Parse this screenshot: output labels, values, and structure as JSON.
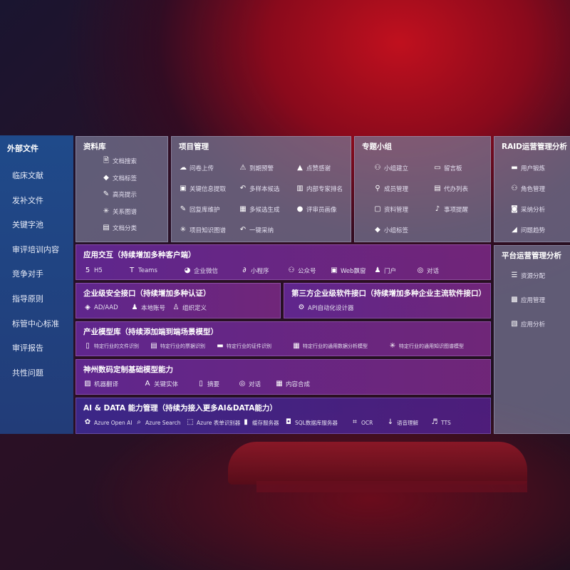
{
  "sidebar": {
    "title": "外部文件",
    "items": [
      "临床文献",
      "发补文件",
      "关键字池",
      "审评培训内容",
      "竞争对手",
      "指导原则",
      "标管中心标准",
      "审评报告",
      "共性问题"
    ]
  },
  "library": {
    "title": "资料库",
    "items": [
      {
        "label": "文档搜索",
        "icon": "document-search-icon"
      },
      {
        "label": "文档标签",
        "icon": "tag-icon"
      },
      {
        "label": "高亮提示",
        "icon": "pen-icon"
      },
      {
        "label": "关系图谱",
        "icon": "graph-icon"
      },
      {
        "label": "文档分类",
        "icon": "document-category-icon"
      }
    ]
  },
  "project": {
    "title": "项目管理",
    "items": [
      {
        "label": "问卷上传",
        "icon": "cloud-upload-icon"
      },
      {
        "label": "到期预警",
        "icon": "alarm-icon"
      },
      {
        "label": "点赞感谢",
        "icon": "thumbs-up-icon"
      },
      {
        "label": "关键信息提取",
        "icon": "window-icon"
      },
      {
        "label": "多样本候选",
        "icon": "reply-icon"
      },
      {
        "label": "内部专家排名",
        "icon": "ranking-icon"
      },
      {
        "label": "回复库维护",
        "icon": "edit-icon"
      },
      {
        "label": "多候选生成",
        "icon": "puzzle-icon"
      },
      {
        "label": "评审员画像",
        "icon": "user-icon"
      },
      {
        "label": "项目知识图谱",
        "icon": "graph-icon"
      },
      {
        "label": "一键采纳",
        "icon": "reply-icon"
      }
    ]
  },
  "group": {
    "title": "专题小组",
    "items": [
      {
        "label": "小组建立",
        "icon": "users-icon"
      },
      {
        "label": "留言板",
        "icon": "bbs-icon"
      },
      {
        "label": "成员管理",
        "icon": "user-add-icon"
      },
      {
        "label": "代办列表",
        "icon": "clipboard-icon"
      },
      {
        "label": "资料管理",
        "icon": "folder-icon"
      },
      {
        "label": "事项提醒",
        "icon": "bell-icon"
      },
      {
        "label": "小组标签",
        "icon": "tag-icon"
      }
    ]
  },
  "raid": {
    "title": "RAID运营管理分析",
    "items": [
      {
        "label": "用户锻炼",
        "icon": "id-card-icon"
      },
      {
        "label": "角色管理",
        "icon": "users-icon"
      },
      {
        "label": "采纳分析",
        "icon": "qa-icon"
      },
      {
        "label": "问题趋势",
        "icon": "trend-icon"
      }
    ]
  },
  "platform": {
    "title": "平台运营管理分析",
    "items": [
      {
        "label": "资源分配",
        "icon": "list-icon"
      },
      {
        "label": "应用管理",
        "icon": "apps-icon"
      },
      {
        "label": "应用分析",
        "icon": "analysis-icon"
      }
    ]
  },
  "interaction": {
    "title": "应用交互（持续增加多种客户端）",
    "items": [
      {
        "label": "H5",
        "icon": "html5-icon"
      },
      {
        "label": "Teams",
        "icon": "teams-icon"
      },
      {
        "label": "企业微信",
        "icon": "wecom-icon"
      },
      {
        "label": "小程序",
        "icon": "miniprogram-icon"
      },
      {
        "label": "公众号",
        "icon": "official-account-icon"
      },
      {
        "label": "Web飘窗",
        "icon": "window-icon"
      },
      {
        "label": "门户",
        "icon": "portal-icon"
      },
      {
        "label": "对话",
        "icon": "chat-icon"
      }
    ]
  },
  "security": {
    "title": "企业级安全接口（持续增加多种认证）",
    "items": [
      {
        "label": "AD/AAD",
        "icon": "ad-icon"
      },
      {
        "label": "本地账号",
        "icon": "account-icon"
      },
      {
        "label": "组织定义",
        "icon": "org-icon"
      }
    ]
  },
  "thirdparty": {
    "title": "第三方企业级软件接口（持续增加多种企业主流软件接口）",
    "items": [
      {
        "label": "API自动化设计器",
        "icon": "gear-icon"
      }
    ]
  },
  "industry": {
    "title": "产业模型库（持续添加端到端场景模型）",
    "items": [
      {
        "label": "特定行业的文件识别",
        "icon": "file-icon"
      },
      {
        "label": "特定行业的票据识别",
        "icon": "receipt-icon"
      },
      {
        "label": "特定行业的证件识别",
        "icon": "id-card-icon"
      },
      {
        "label": "特定行业的通用数据分析模型",
        "icon": "chart-icon"
      },
      {
        "label": "特定行业的通用知识图谱模型",
        "icon": "graph-icon"
      }
    ]
  },
  "base": {
    "title": "神州数码定制基础模型能力",
    "items": [
      {
        "label": "机器翻译",
        "icon": "translate-icon"
      },
      {
        "label": "关键实体",
        "icon": "entity-icon"
      },
      {
        "label": "摘要",
        "icon": "summary-icon"
      },
      {
        "label": "对话",
        "icon": "chat-icon"
      },
      {
        "label": "内容合成",
        "icon": "synthesis-icon"
      }
    ]
  },
  "aidata": {
    "title": "AI & DATA 能力管理（持续为接入更多AI&DATA能力）",
    "items": [
      {
        "label": "Azure Open AI",
        "icon": "openai-icon"
      },
      {
        "label": "Azure Search",
        "icon": "search-icon"
      },
      {
        "label": "Azure 表单识别器",
        "icon": "form-icon"
      },
      {
        "label": "缓存服务器",
        "icon": "server-icon"
      },
      {
        "label": "SQL数据库服务器",
        "icon": "database-icon"
      },
      {
        "label": "OCR",
        "icon": "ocr-icon"
      },
      {
        "label": "语音理解",
        "icon": "speech-icon"
      },
      {
        "label": "TTS",
        "icon": "tts-icon"
      }
    ]
  }
}
